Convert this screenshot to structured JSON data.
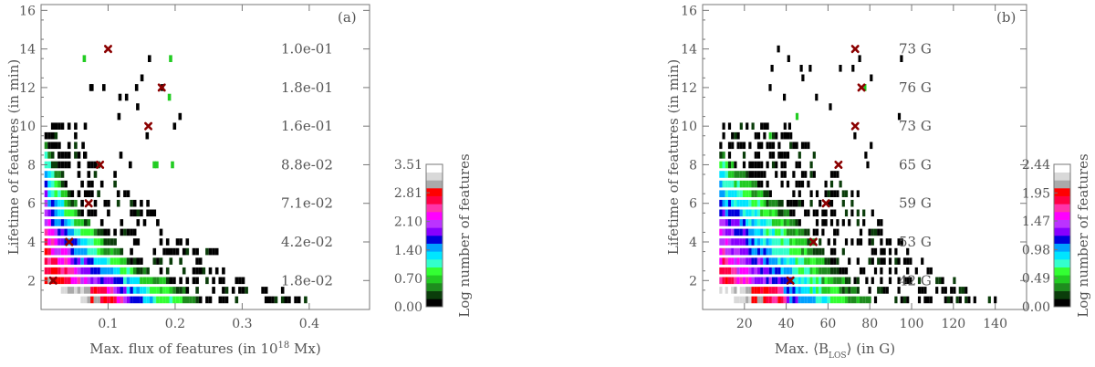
{
  "chart_data": [
    {
      "type": "heatmap",
      "panel_label": "(a)",
      "xlabel_prefix": "Max. flux of features (in 10",
      "xlabel_exponent": "18",
      "xlabel_suffix": " Mx)",
      "ylabel": "Lifetime of features (in min)",
      "xlim": [
        0.0,
        0.49
      ],
      "ylim": [
        0.5,
        16.3
      ],
      "xticks": [
        "0.1",
        "0.2",
        "0.3",
        "0.4"
      ],
      "xtick_values": [
        0.1,
        0.2,
        0.3,
        0.4
      ],
      "yticks": [
        "2",
        "4",
        "6",
        "8",
        "10",
        "12",
        "14",
        "16"
      ],
      "ytick_values": [
        2,
        4,
        6,
        8,
        10,
        12,
        14,
        16
      ],
      "annotations": [
        {
          "y": 14,
          "text": "1.0e-01"
        },
        {
          "y": 12,
          "text": "1.8e-01"
        },
        {
          "y": 10,
          "text": "1.6e-01"
        },
        {
          "y": 8,
          "text": "8.8e-02"
        },
        {
          "y": 6,
          "text": "7.1e-02"
        },
        {
          "y": 4,
          "text": "4.2e-02"
        },
        {
          "y": 2,
          "text": "1.8e-02"
        }
      ],
      "mean_markers": [
        {
          "x": 0.018,
          "y": 2
        },
        {
          "x": 0.042,
          "y": 4
        },
        {
          "x": 0.071,
          "y": 6
        },
        {
          "x": 0.088,
          "y": 8
        },
        {
          "x": 0.16,
          "y": 10
        },
        {
          "x": 0.18,
          "y": 12
        },
        {
          "x": 0.1,
          "y": 14
        }
      ],
      "colorbar": {
        "label": "Log number of features",
        "ticks": [
          "0.00",
          "0.70",
          "1.40",
          "2.10",
          "2.81",
          "3.51"
        ],
        "range": [
          0.0,
          3.51
        ]
      }
    },
    {
      "type": "heatmap",
      "panel_label": "(b)",
      "xlabel_prefix": "Max. ⟨B",
      "xlabel_subscript": "LOS",
      "xlabel_suffix": "⟩ (in G)",
      "ylabel": "Lifetime of features (in min)",
      "xlim": [
        0,
        155
      ],
      "ylim": [
        0.5,
        16.3
      ],
      "xticks": [
        "20",
        "40",
        "60",
        "80",
        "100",
        "120",
        "140"
      ],
      "xtick_values": [
        20,
        40,
        60,
        80,
        100,
        120,
        140
      ],
      "yticks": [
        "2",
        "4",
        "6",
        "8",
        "10",
        "12",
        "14",
        "16"
      ],
      "ytick_values": [
        2,
        4,
        6,
        8,
        10,
        12,
        14,
        16
      ],
      "annotations": [
        {
          "y": 14,
          "text": "73 G"
        },
        {
          "y": 12,
          "text": "76 G"
        },
        {
          "y": 10,
          "text": "73 G"
        },
        {
          "y": 8,
          "text": "65 G"
        },
        {
          "y": 6,
          "text": "59 G"
        },
        {
          "y": 4,
          "text": "53 G"
        },
        {
          "y": 2,
          "text": "42 G"
        }
      ],
      "mean_markers": [
        {
          "x": 42,
          "y": 2
        },
        {
          "x": 53,
          "y": 4
        },
        {
          "x": 59,
          "y": 6
        },
        {
          "x": 65,
          "y": 8
        },
        {
          "x": 73,
          "y": 10
        },
        {
          "x": 76,
          "y": 12
        },
        {
          "x": 73,
          "y": 14
        }
      ],
      "colorbar": {
        "label": "Log number of features",
        "ticks": [
          "0.00",
          "0.49",
          "0.98",
          "1.47",
          "1.95",
          "2.44"
        ],
        "range": [
          0.0,
          2.44
        ]
      }
    }
  ],
  "colors": {
    "axis": "#777777",
    "marker": "#8b0000",
    "colormap": [
      "#000000",
      "#0b3d0b",
      "#1e8c1e",
      "#22cc22",
      "#33ff33",
      "#33ffcc",
      "#00e5ff",
      "#00a0ff",
      "#0000dd",
      "#8800ff",
      "#bb33ff",
      "#ff00ff",
      "#ff33aa",
      "#ff0044",
      "#ff0000",
      "#aaaaaa",
      "#d9d9d9",
      "#ffffff"
    ]
  }
}
